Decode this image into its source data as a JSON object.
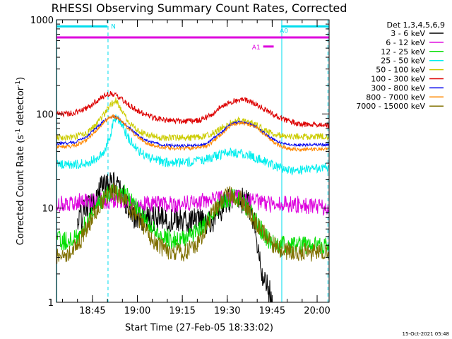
{
  "chart_data": {
    "type": "line",
    "title": "RHESSI Observing Summary Count Rates, Corrected",
    "xlabel": "Start Time (27-Feb-05 18:33:02)",
    "ylabel_main": "Corrected Count Rate (s",
    "ylabel_sup1": "-1",
    "ylabel_mid": " detector",
    "ylabel_sup2": "-1",
    "ylabel_end": ")",
    "x_unit": "minutes after 18:33:02",
    "xlim": [
      0,
      91
    ],
    "yscale": "log",
    "ylim": [
      1,
      1000
    ],
    "x_ticks": [
      {
        "t": 12,
        "label": "18:45"
      },
      {
        "t": 27,
        "label": "19:00"
      },
      {
        "t": 42,
        "label": "19:15"
      },
      {
        "t": 57,
        "label": "19:30"
      },
      {
        "t": 72,
        "label": "19:45"
      },
      {
        "t": 87,
        "label": "20:00"
      }
    ],
    "y_ticks": [
      {
        "v": 1,
        "label": "1"
      },
      {
        "v": 10,
        "label": "10"
      },
      {
        "v": 100,
        "label": "100"
      },
      {
        "v": 1000,
        "label": "1000"
      }
    ],
    "legend_title": "Det 1,3,4,5,6,9",
    "series": [
      {
        "name": "3 - 6 keV",
        "label_range": "3 - 6",
        "unit": "keV",
        "color": "#000000",
        "x": [
          7,
          9,
          11,
          13,
          14,
          16,
          18,
          20,
          22,
          24,
          26,
          52,
          54,
          56,
          58,
          60,
          62,
          64,
          66,
          67,
          68,
          69,
          70,
          71,
          72
        ],
        "y": [
          7,
          9,
          11,
          13,
          16,
          18,
          19,
          17,
          14,
          10,
          8,
          7,
          9,
          11,
          12,
          13,
          12,
          11,
          7,
          4,
          2.5,
          1.8,
          1.5,
          1.3,
          1.1
        ]
      },
      {
        "name": "6 - 12 keV",
        "label_range": "6 - 12",
        "unit": "keV",
        "color": "#dd00dd",
        "x": [
          0,
          10,
          20,
          30,
          40,
          50,
          60,
          70,
          80,
          91
        ],
        "y": [
          11,
          12,
          12,
          11,
          11,
          12,
          13,
          11,
          11,
          10
        ]
      },
      {
        "name": "12 - 25 keV",
        "label_range": "12 - 25",
        "unit": "keV",
        "color": "#00dd00",
        "x": [
          0,
          5,
          8,
          11,
          14,
          17,
          20,
          23,
          26,
          29,
          32,
          35,
          40,
          45,
          50,
          53,
          56,
          59,
          62,
          65,
          68,
          71,
          74,
          77,
          80,
          85,
          91
        ],
        "y": [
          4.5,
          4.5,
          5.5,
          8,
          11,
          14,
          15,
          14,
          11,
          8,
          6,
          5,
          4.5,
          5,
          7,
          10,
          12,
          13,
          12,
          9,
          6,
          4.5,
          4,
          4,
          4,
          4,
          4
        ]
      },
      {
        "name": "25 - 50 keV",
        "label_range": "25 - 50",
        "unit": "keV",
        "color": "#00eeee",
        "x": [
          0,
          6,
          10,
          13,
          16,
          18,
          19,
          20,
          22,
          24,
          27,
          30,
          35,
          40,
          45,
          50,
          55,
          58,
          61,
          64,
          67,
          70,
          73,
          76,
          80,
          85,
          91
        ],
        "y": [
          29,
          29,
          30,
          33,
          40,
          60,
          85,
          90,
          75,
          55,
          42,
          35,
          31,
          30,
          31,
          33,
          37,
          39,
          38,
          37,
          34,
          31,
          28,
          26,
          25,
          26,
          27
        ]
      },
      {
        "name": "50 - 100 keV",
        "label_range": "50 - 100",
        "unit": "keV",
        "color": "#cccc00",
        "x": [
          0,
          6,
          10,
          13,
          16,
          18,
          20,
          22,
          24,
          27,
          30,
          35,
          40,
          45,
          50,
          54,
          58,
          61,
          64,
          67,
          70,
          73,
          76,
          80,
          85,
          91
        ],
        "y": [
          56,
          57,
          62,
          75,
          100,
          125,
          140,
          105,
          80,
          68,
          60,
          56,
          56,
          56,
          58,
          68,
          80,
          85,
          82,
          75,
          66,
          60,
          58,
          58,
          57,
          58
        ]
      },
      {
        "name": "100 - 300 keV",
        "label_range": "100 - 300",
        "unit": "keV",
        "color": "#dd0000",
        "x": [
          0,
          6,
          10,
          13,
          16,
          18,
          20,
          22,
          25,
          28,
          32,
          36,
          40,
          44,
          48,
          52,
          55,
          58,
          61,
          63,
          66,
          69,
          72,
          75,
          78,
          82,
          86,
          91
        ],
        "y": [
          100,
          102,
          115,
          135,
          155,
          165,
          160,
          140,
          120,
          105,
          92,
          86,
          84,
          84,
          86,
          100,
          120,
          135,
          140,
          140,
          130,
          115,
          100,
          90,
          82,
          78,
          76,
          76
        ]
      },
      {
        "name": "300 - 800 keV",
        "label_range": "300 - 800",
        "unit": "keV",
        "color": "#0000ee",
        "x": [
          0,
          6,
          10,
          13,
          16,
          18,
          19,
          21,
          24,
          27,
          30,
          35,
          40,
          45,
          50,
          54,
          58,
          61,
          64,
          67,
          70,
          73,
          76,
          80,
          85,
          91
        ],
        "y": [
          48,
          50,
          57,
          70,
          85,
          92,
          95,
          88,
          72,
          60,
          52,
          47,
          46,
          46,
          48,
          60,
          77,
          82,
          80,
          72,
          60,
          52,
          48,
          47,
          47,
          47
        ]
      },
      {
        "name": "800 - 7000 keV",
        "label_range": "800 - 7000",
        "unit": "keV",
        "color": "#ff8800",
        "x": [
          0,
          6,
          10,
          13,
          16,
          18,
          19,
          21,
          24,
          27,
          30,
          35,
          40,
          45,
          50,
          54,
          58,
          61,
          64,
          67,
          70,
          73,
          76,
          80,
          85,
          91
        ],
        "y": [
          44,
          46,
          53,
          66,
          82,
          92,
          95,
          88,
          70,
          57,
          49,
          44,
          43,
          43,
          45,
          57,
          75,
          80,
          78,
          70,
          58,
          49,
          44,
          42,
          42,
          42
        ]
      },
      {
        "name": "7000 - 15000 keV",
        "label_range": "7000 - 15000",
        "unit": "keV",
        "color": "#807000",
        "x": [
          0,
          4,
          7,
          10,
          13,
          16,
          19,
          22,
          25,
          28,
          31,
          34,
          38,
          42,
          47,
          50,
          53,
          56,
          59,
          62,
          65,
          68,
          71,
          74,
          78,
          82,
          86,
          91
        ],
        "y": [
          3.2,
          3.2,
          4,
          6,
          9,
          13,
          15,
          13,
          9.5,
          7,
          5,
          4,
          3.5,
          3.3,
          4,
          6.5,
          10,
          13,
          14,
          12,
          8.5,
          6,
          4.5,
          3.7,
          3.5,
          3.4,
          3.4,
          3.3
        ]
      }
    ],
    "flag_bars": [
      {
        "label": "N",
        "start": 0,
        "end": 17,
        "level": 850,
        "color": "#00ddee"
      },
      {
        "label": "",
        "start": 0,
        "end": 91,
        "level": 650,
        "color": "#dd00dd"
      },
      {
        "label": "A0",
        "start": 75,
        "end": 91,
        "level": 850,
        "color": "#00ddee"
      },
      {
        "label": "A1",
        "start": 69,
        "end": 72.5,
        "level": 520,
        "color": "#dd00dd"
      }
    ],
    "vlines": [
      {
        "t": 0.1,
        "style": "solid",
        "color": "#00ddee"
      },
      {
        "t": 17.2,
        "style": "dashed",
        "color": "#00ddee"
      },
      {
        "t": 75.2,
        "style": "solid",
        "color": "#00ddee"
      },
      {
        "t": 90.6,
        "style": "dashed",
        "color": "#00ddee"
      }
    ]
  },
  "footer": {
    "timestamp": "15-Oct-2021 05:48"
  }
}
